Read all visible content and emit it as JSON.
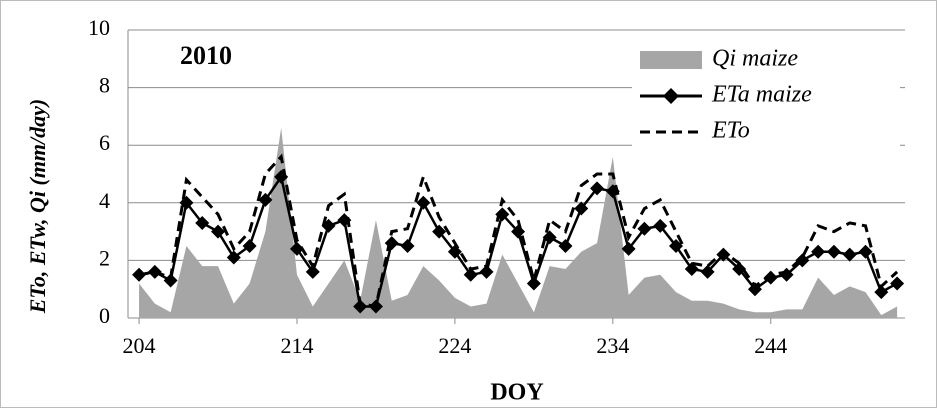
{
  "chart_data": {
    "type": "line",
    "annotation": "2010",
    "x_label": "DOY",
    "y_label": "ETo, ETw, Qi (mm/day)",
    "x": [
      204,
      205,
      206,
      207,
      208,
      209,
      210,
      211,
      212,
      213,
      214,
      215,
      216,
      217,
      218,
      219,
      220,
      221,
      222,
      223,
      224,
      225,
      226,
      227,
      228,
      229,
      230,
      231,
      232,
      233,
      234,
      235,
      236,
      237,
      238,
      239,
      240,
      241,
      242,
      243,
      244,
      245,
      246,
      247,
      248,
      249,
      250,
      251,
      252
    ],
    "xlim": [
      203.3,
      252.5
    ],
    "xticks": [
      204,
      214,
      224,
      234,
      244
    ],
    "ylim": [
      0,
      10
    ],
    "yticks": [
      0,
      2,
      4,
      6,
      8,
      10
    ],
    "grid": true,
    "legend": "top-right",
    "series": [
      {
        "name": "Qi maize",
        "color": "#a6a6a6",
        "kind": "area",
        "values": [
          1.2,
          0.5,
          0.2,
          2.5,
          1.8,
          1.8,
          0.5,
          1.2,
          3.0,
          6.6,
          1.5,
          0.4,
          1.2,
          2.0,
          0.6,
          3.4,
          0.6,
          0.8,
          1.8,
          1.3,
          0.7,
          0.4,
          0.5,
          2.2,
          1.2,
          0.2,
          1.8,
          1.7,
          2.3,
          2.6,
          5.6,
          0.8,
          1.4,
          1.5,
          0.9,
          0.6,
          0.6,
          0.5,
          0.3,
          0.2,
          0.2,
          0.3,
          0.3,
          1.4,
          0.8,
          1.1,
          0.9,
          0.1,
          0.4
        ]
      },
      {
        "name": "ETa maize",
        "color": "#000000",
        "kind": "line",
        "marker": "diamond",
        "values": [
          1.5,
          1.6,
          1.3,
          4.0,
          3.3,
          3.0,
          2.1,
          2.5,
          4.1,
          4.9,
          2.4,
          1.6,
          3.2,
          3.4,
          0.4,
          0.4,
          2.6,
          2.5,
          4.0,
          3.0,
          2.3,
          1.5,
          1.6,
          3.6,
          3.0,
          1.2,
          2.8,
          2.5,
          3.8,
          4.5,
          4.4,
          2.4,
          3.1,
          3.2,
          2.5,
          1.7,
          1.6,
          2.2,
          1.7,
          1.0,
          1.4,
          1.5,
          2.0,
          2.3,
          2.3,
          2.2,
          2.3,
          0.9,
          1.2
        ]
      },
      {
        "name": "ETo",
        "color": "#000000",
        "kind": "line",
        "dashed": true,
        "values": [
          1.5,
          1.6,
          1.4,
          4.8,
          4.2,
          3.6,
          2.4,
          3.0,
          5.0,
          5.6,
          2.7,
          1.8,
          3.9,
          4.3,
          0.5,
          0.4,
          3.0,
          3.1,
          4.9,
          3.5,
          2.6,
          1.7,
          1.8,
          4.1,
          3.4,
          1.3,
          3.4,
          3.0,
          4.6,
          5.0,
          5.0,
          2.8,
          3.8,
          4.1,
          3.0,
          1.9,
          1.8,
          2.3,
          1.9,
          1.1,
          1.5,
          1.6,
          2.1,
          3.2,
          3.0,
          3.3,
          3.2,
          1.1,
          1.6
        ]
      }
    ]
  }
}
